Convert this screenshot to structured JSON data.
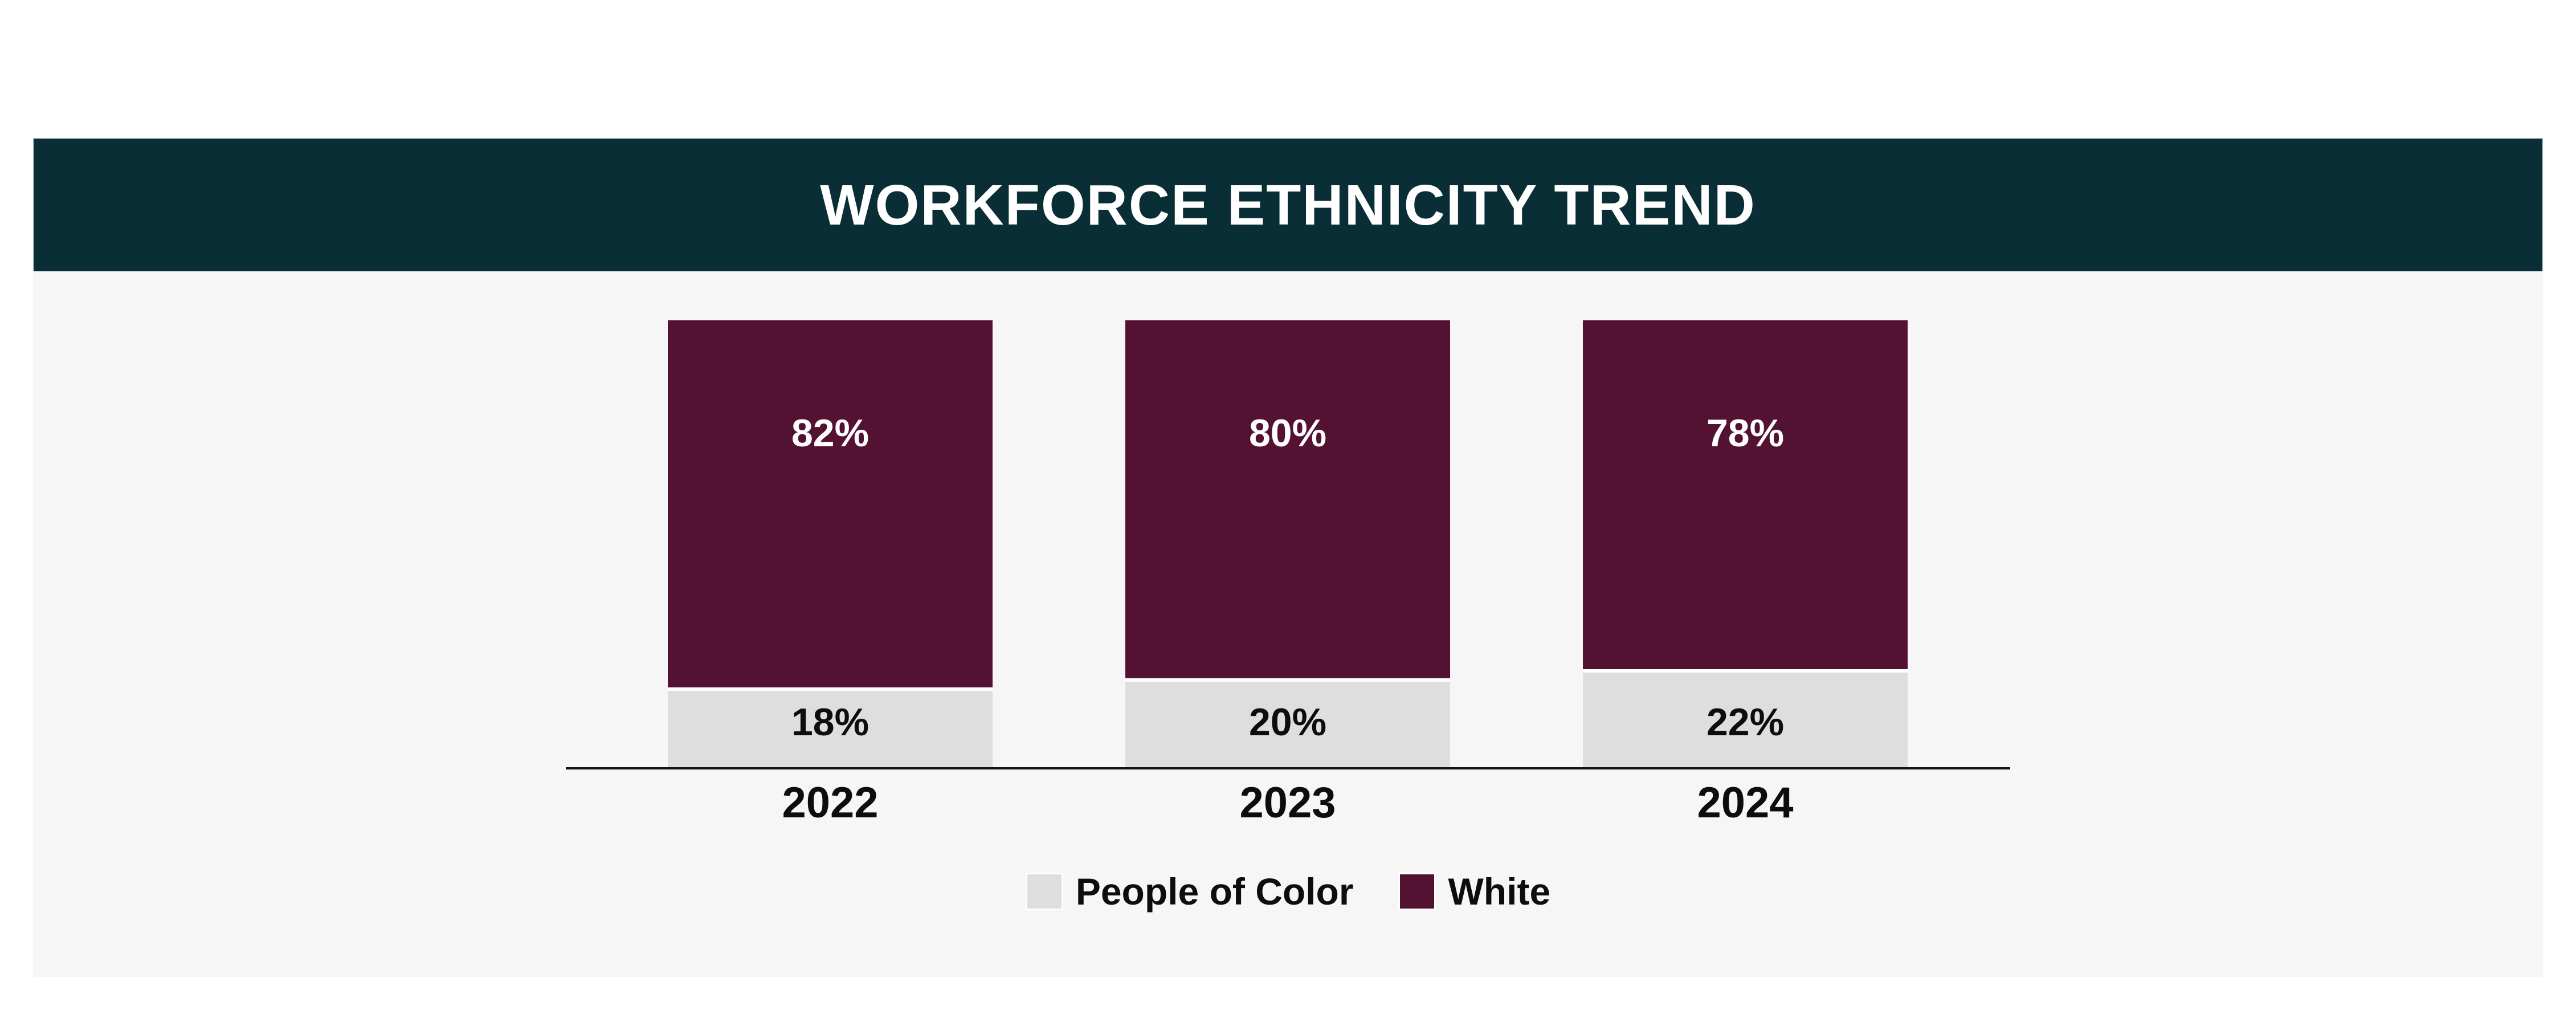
{
  "header": {
    "title": "WORKFORCE ETHNICITY TREND",
    "background": "#0a2e35",
    "text_color": "#ffffff"
  },
  "panel": {
    "background": "#f6f6f7"
  },
  "chart_data": {
    "type": "bar",
    "stacked": true,
    "orientation": "vertical",
    "title": "WORKFORCE ETHNICITY TREND",
    "categories": [
      "2022",
      "2023",
      "2024"
    ],
    "series": [
      {
        "name": "People of Color",
        "color": "#dedede",
        "values": [
          18,
          20,
          22
        ],
        "labels": [
          "18%",
          "20%",
          "22%"
        ]
      },
      {
        "name": "White",
        "color": "#541233",
        "values": [
          82,
          80,
          78
        ],
        "labels": [
          "82%",
          "80%",
          "78%"
        ]
      }
    ],
    "ylim": [
      0,
      100
    ],
    "value_format": "percent",
    "grid": false,
    "axis_line_color": "#141414",
    "legend_position": "bottom"
  },
  "legend": {
    "items": [
      {
        "label": "People of Color",
        "color": "#dedede"
      },
      {
        "label": "White",
        "color": "#541233"
      }
    ]
  }
}
